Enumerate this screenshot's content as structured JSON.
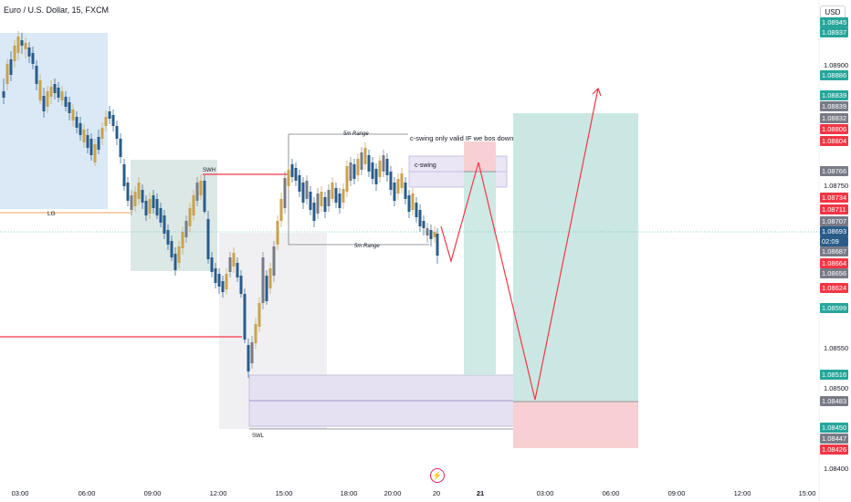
{
  "header": {
    "symbol_title": "Euro / U.S. Dollar, 15, FXCM",
    "currency_button": "USD"
  },
  "price_axis": {
    "labels": [
      "1.08900",
      "1.08750",
      "1.08550",
      "1.08500",
      "1.08400"
    ],
    "tags": [
      {
        "text": "1.08945",
        "color": "#26a69a"
      },
      {
        "text": "1.08937",
        "color": "#26a69a"
      },
      {
        "text": "1.08886",
        "color": "#26a69a"
      },
      {
        "text": "1.08839",
        "color": "#26a69a"
      },
      {
        "text": "1.08839",
        "color": "#787b86"
      },
      {
        "text": "1.08832",
        "color": "#787b86"
      },
      {
        "text": "1.08806",
        "color": "#f23645"
      },
      {
        "text": "1.08804",
        "color": "#f23645"
      },
      {
        "text": "1.08766",
        "color": "#787b86"
      },
      {
        "text": "1.08734",
        "color": "#f23645"
      },
      {
        "text": "1.08711",
        "color": "#f23645"
      },
      {
        "text": "1.08707",
        "color": "#787b86"
      },
      {
        "text": "1.08693",
        "color": "#2a5c8a"
      },
      {
        "text": "02:09",
        "color": "#2a5c8a"
      },
      {
        "text": "1.08687",
        "color": "#787b86"
      },
      {
        "text": "1.08664",
        "color": "#f23645"
      },
      {
        "text": "1.08656",
        "color": "#787b86"
      },
      {
        "text": "1.08624",
        "color": "#f23645"
      },
      {
        "text": "1.08599",
        "color": "#26a69a"
      },
      {
        "text": "1.08516",
        "color": "#26a69a"
      },
      {
        "text": "1.08483",
        "color": "#787b86"
      },
      {
        "text": "1.08450",
        "color": "#26a69a"
      },
      {
        "text": "1.08447",
        "color": "#787b86"
      },
      {
        "text": "1.08426",
        "color": "#f23645"
      }
    ]
  },
  "time_axis": {
    "labels": [
      "03:00",
      "06:00",
      "09:00",
      "12:00",
      "15:00",
      "18:00",
      "20:00",
      "20",
      "21",
      "03:00",
      "06:00",
      "09:00",
      "12:00",
      "15:00"
    ]
  },
  "annotations": {
    "lg": "LG",
    "swh": "SWH",
    "swl": "SWL",
    "range_top": "5m Range",
    "range_bottom": "5m Range",
    "c_swing_note": "c-swing only valid IF we bos down",
    "c_swing": "c-swing"
  },
  "colors": {
    "bull": "#2a5c8a",
    "bear": "#c9a24d",
    "bear_gray": "#787b86",
    "red_line": "#f23645",
    "teal_zone": "#b2dfdb",
    "pink_zone": "#f8c8cc",
    "purple_zone": "#e1dcf0"
  }
}
